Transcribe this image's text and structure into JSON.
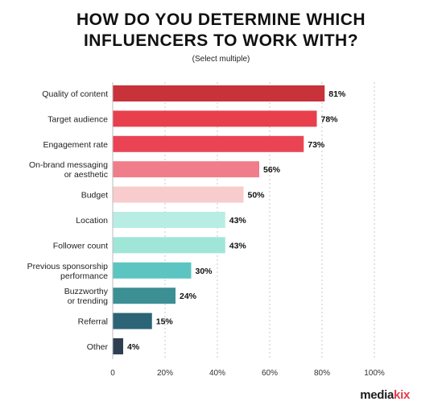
{
  "header": {
    "title_line1": "HOW DO YOU DETERMINE WHICH",
    "title_line2": "INFLUENCERS TO WORK WITH?",
    "subtitle": "(Select multiple)"
  },
  "brand": {
    "logo_main": "media",
    "logo_accent": "kix",
    "accent_color": "#e63b4c"
  },
  "chart_data": {
    "type": "bar",
    "orientation": "horizontal",
    "title": "HOW DO YOU DETERMINE WHICH INFLUENCERS TO WORK WITH?",
    "subtitle": "(Select multiple)",
    "categories": [
      [
        "Quality of content"
      ],
      [
        "Target audience"
      ],
      [
        "Engagement rate"
      ],
      [
        "On-brand messaging",
        "or aesthetic"
      ],
      [
        "Budget"
      ],
      [
        "Location"
      ],
      [
        "Follower count"
      ],
      [
        "Previous sponsorship",
        "performance"
      ],
      [
        "Buzzworthy",
        "or trending"
      ],
      [
        "Referral"
      ],
      [
        "Other"
      ]
    ],
    "values": [
      81,
      78,
      73,
      56,
      50,
      43,
      43,
      30,
      24,
      15,
      4
    ],
    "value_labels": [
      "81%",
      "78%",
      "73%",
      "56%",
      "50%",
      "43%",
      "43%",
      "30%",
      "24%",
      "15%",
      "4%"
    ],
    "colors": [
      "#c8323a",
      "#e83f4c",
      "#ea4454",
      "#f07d8a",
      "#f8cccd",
      "#b8ede3",
      "#9fe6d9",
      "#5cc5c1",
      "#3c8f93",
      "#2b6476",
      "#2e3f50"
    ],
    "xlim": [
      0,
      100
    ],
    "xticks": [
      0,
      20,
      40,
      60,
      80,
      100
    ],
    "xtick_labels": [
      "0",
      "20%",
      "40%",
      "60%",
      "80%",
      "100%"
    ],
    "grid": "vertical dashed",
    "legend": "none"
  }
}
